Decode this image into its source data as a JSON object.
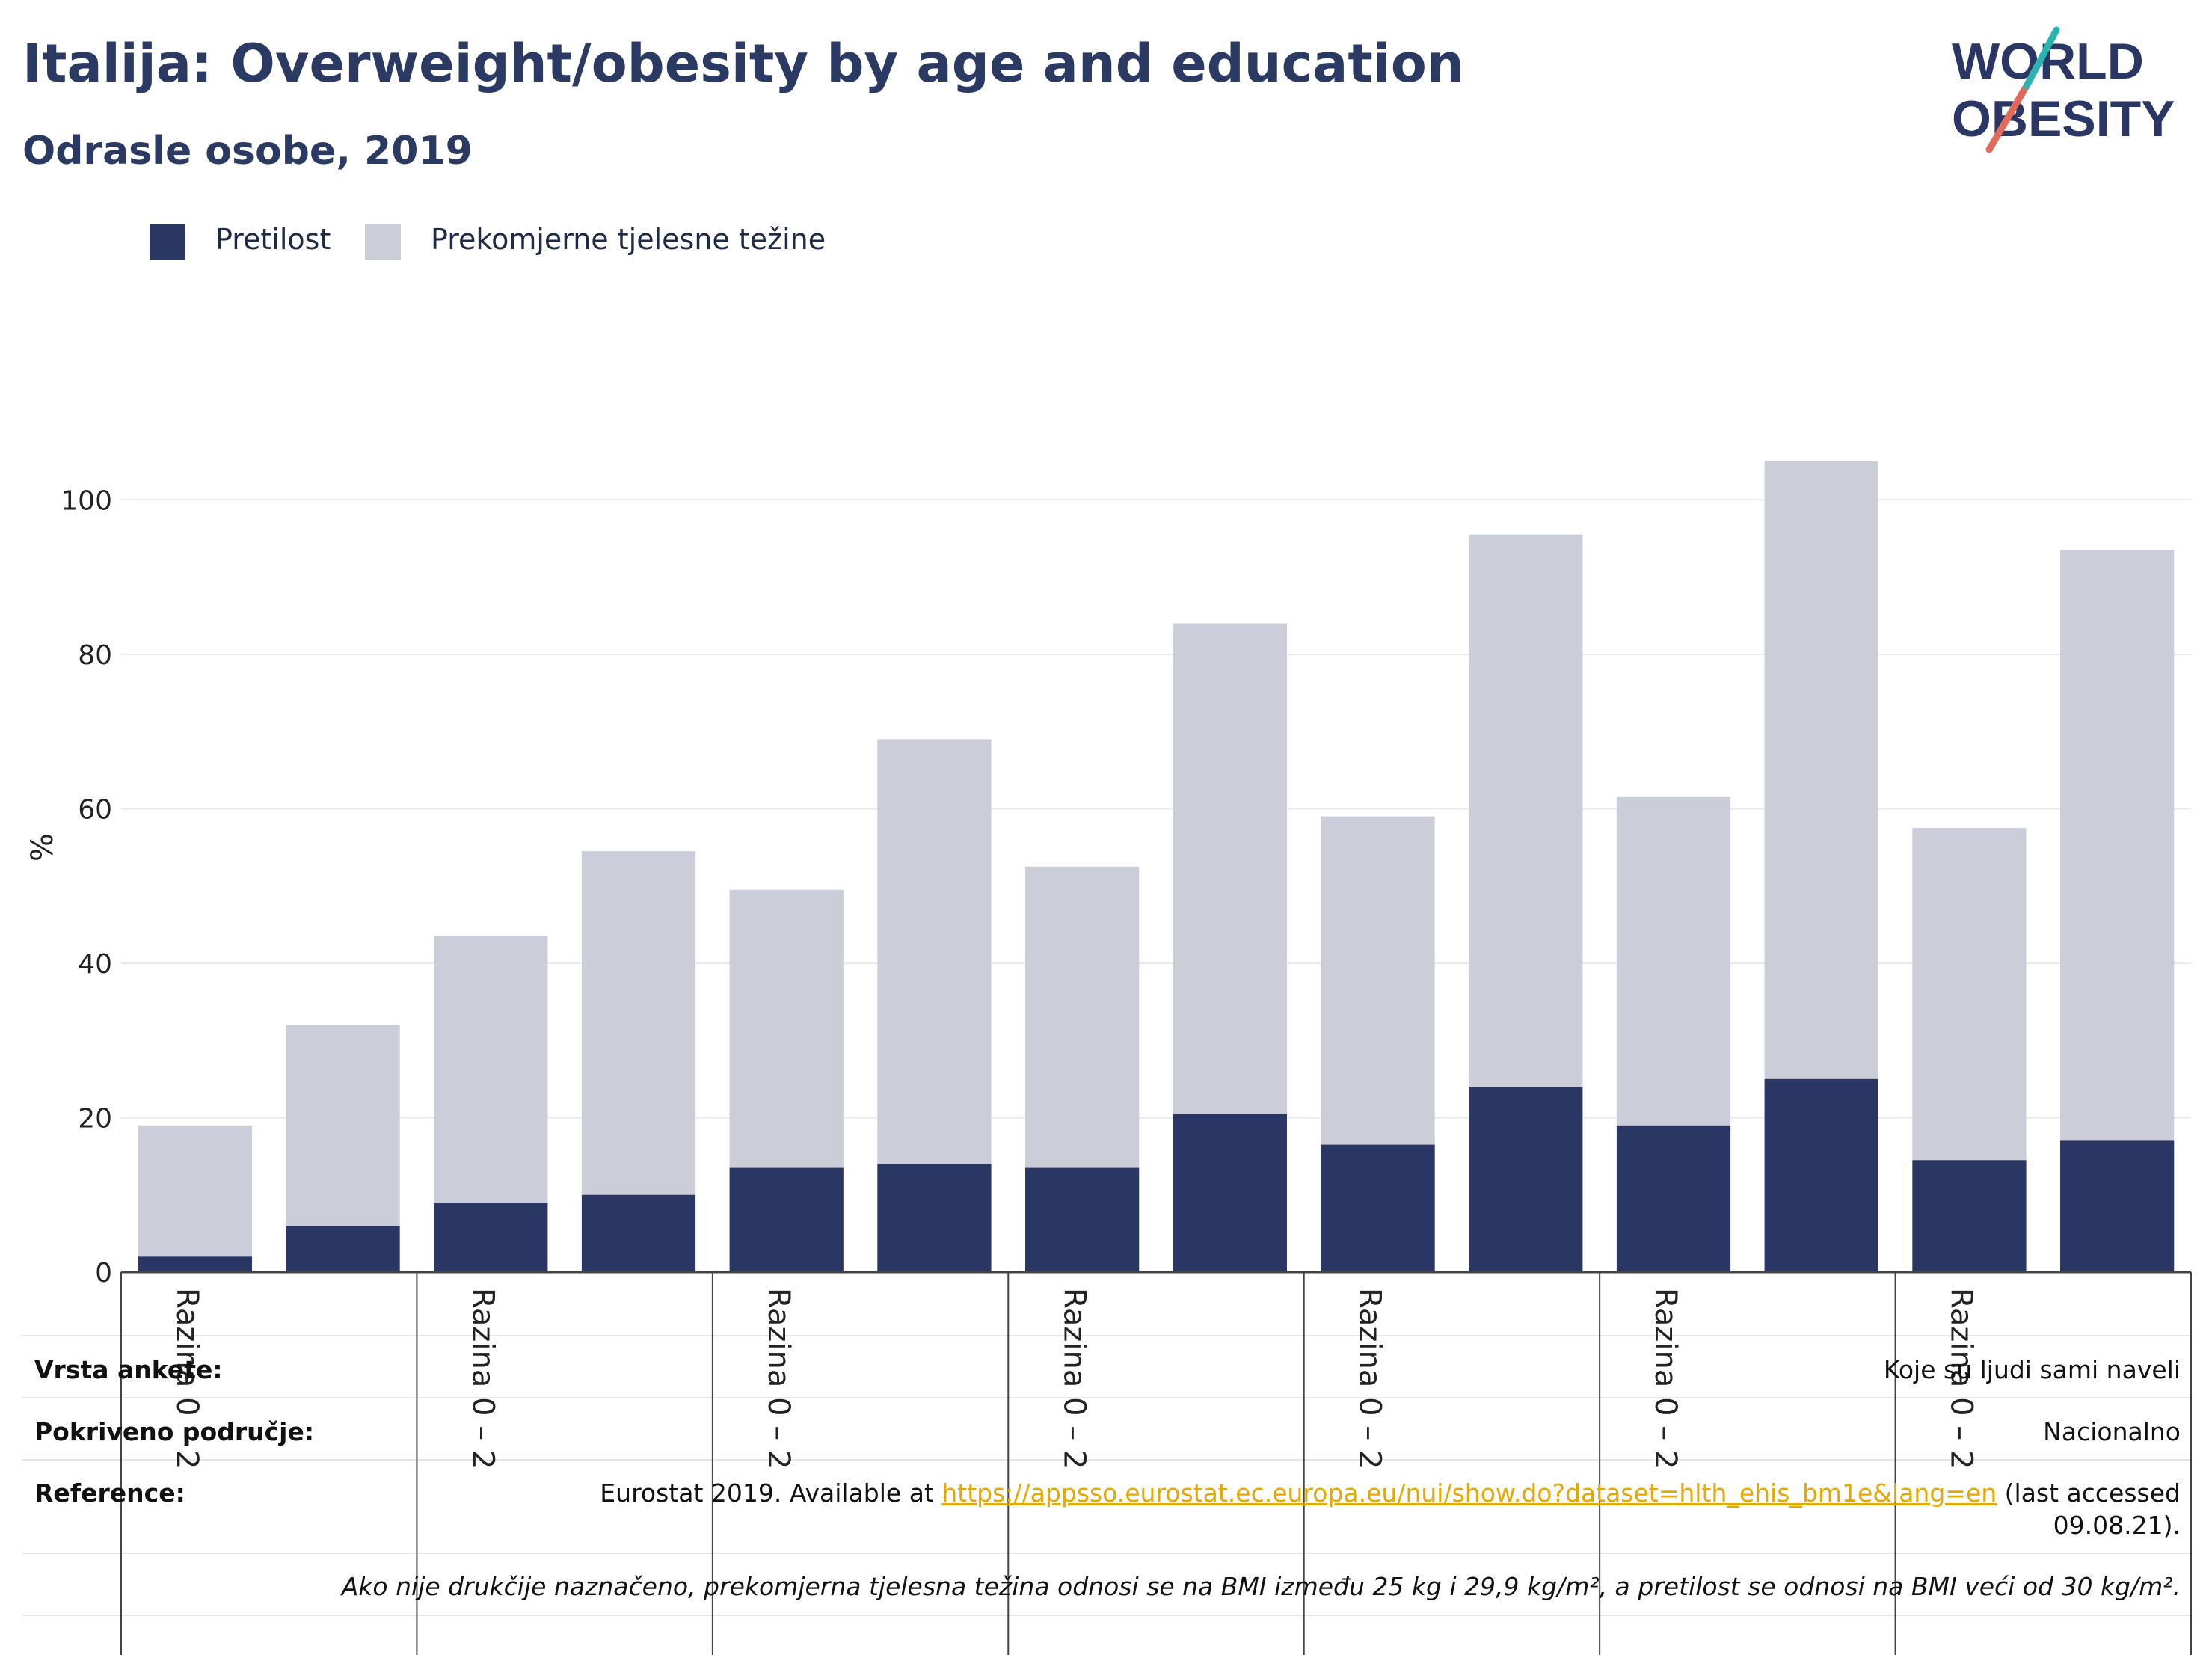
{
  "header": {
    "title": "Italija: Overweight/obesity by age and education",
    "subtitle": "Odrasle osobe, 2019"
  },
  "logo": {
    "line1": "WORLD",
    "line2": "OBESITY"
  },
  "colors": {
    "obesity": "#2a3663",
    "overweight": "#cbcdd8",
    "accent_teal": "#2bb3b1",
    "accent_red": "#e36a5a",
    "link": "#e6a700"
  },
  "chart_data": {
    "type": "bar",
    "stacked": true,
    "ylabel": "%",
    "ylim": [
      0,
      110
    ],
    "yticks": [
      0,
      20,
      40,
      60,
      80,
      100
    ],
    "grid": true,
    "legend_position": "top-left",
    "group_labels": [
      "Razina 0 – 2",
      "Razina 0 – 2",
      "Razina 0 – 2",
      "Razina 0 – 2",
      "Razina 0 – 2",
      "Razina 0 – 2",
      "Razina 0 – 2"
    ],
    "series": [
      {
        "name": "Pretilost",
        "values": [
          2,
          6,
          9,
          10,
          13.5,
          14,
          13.5,
          20.5,
          16.5,
          24,
          19,
          25,
          14.5,
          17
        ]
      },
      {
        "name": "Prekomjerne tjelesne težine",
        "values": [
          17,
          26,
          34.5,
          44.5,
          36,
          55,
          39,
          63.5,
          42.5,
          71.5,
          42.5,
          80,
          43,
          76.5
        ]
      }
    ]
  },
  "footer": {
    "survey_label": "Vrsta ankete:",
    "survey_value": "Koje su ljudi sami naveli",
    "coverage_label": "Pokriveno područje:",
    "coverage_value": "Nacionalno",
    "reference_label": "Reference:",
    "reference_prefix": "Eurostat 2019. Available at ",
    "reference_link": "https://appsso.eurostat.ec.europa.eu/nui/show.do?dataset=hlth_ehis_bm1e&lang=en",
    "reference_suffix": " (last accessed",
    "reference_date": "09.08.21).",
    "note": "Ako nije drukčije naznačeno, prekomjerna tjelesna težina odnosi se na BMI između 25 kg i 29,9 kg/m², a pretilost se odnosi na BMI veći od 30 kg/m²."
  }
}
